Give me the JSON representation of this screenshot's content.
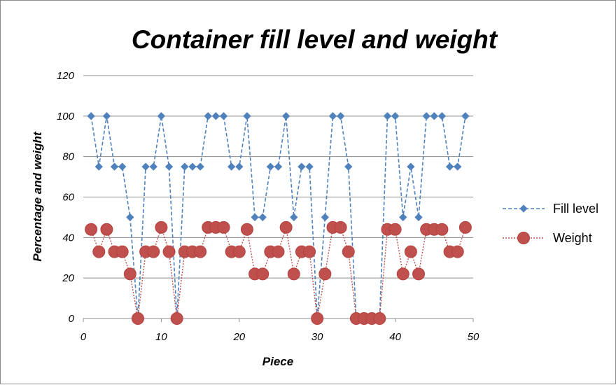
{
  "chart_data": {
    "type": "line",
    "title": "Container fill level and weight",
    "xlabel": "Piece",
    "ylabel": "Percentage and weight",
    "xlim": [
      0,
      50
    ],
    "ylim": [
      0,
      120
    ],
    "xticks": [
      0,
      10,
      20,
      30,
      40,
      50
    ],
    "yticks": [
      0,
      20,
      40,
      60,
      80,
      100,
      120
    ],
    "grid": "horizontal",
    "legend": "right",
    "x": [
      1,
      2,
      3,
      4,
      5,
      6,
      7,
      8,
      9,
      10,
      11,
      12,
      13,
      14,
      15,
      16,
      17,
      18,
      19,
      20,
      21,
      22,
      23,
      24,
      25,
      26,
      27,
      28,
      29,
      30,
      31,
      32,
      33,
      34,
      35,
      36,
      37,
      38,
      39,
      40,
      41,
      42,
      43,
      44,
      45,
      46,
      47,
      48,
      49
    ],
    "series": [
      {
        "name": "Fill level",
        "color": "#4f81bd",
        "values": [
          100,
          75,
          100,
          75,
          75,
          50,
          0,
          75,
          75,
          100,
          75,
          0,
          75,
          75,
          75,
          100,
          100,
          100,
          75,
          75,
          100,
          50,
          50,
          75,
          75,
          100,
          50,
          75,
          75,
          0,
          50,
          100,
          100,
          75,
          0,
          0,
          0,
          0,
          100,
          100,
          50,
          75,
          50,
          100,
          100,
          100,
          75,
          75,
          100
        ]
      },
      {
        "name": "Weight",
        "color": "#c0504d",
        "values": [
          44,
          33,
          44,
          33,
          33,
          22,
          0,
          33,
          33,
          45,
          33,
          0,
          33,
          33,
          33,
          45,
          45,
          45,
          33,
          33,
          44,
          22,
          22,
          33,
          33,
          45,
          22,
          33,
          33,
          0,
          22,
          45,
          45,
          33,
          0,
          0,
          0,
          0,
          44,
          44,
          22,
          33,
          22,
          44,
          44,
          44,
          33,
          33,
          45
        ]
      }
    ]
  }
}
